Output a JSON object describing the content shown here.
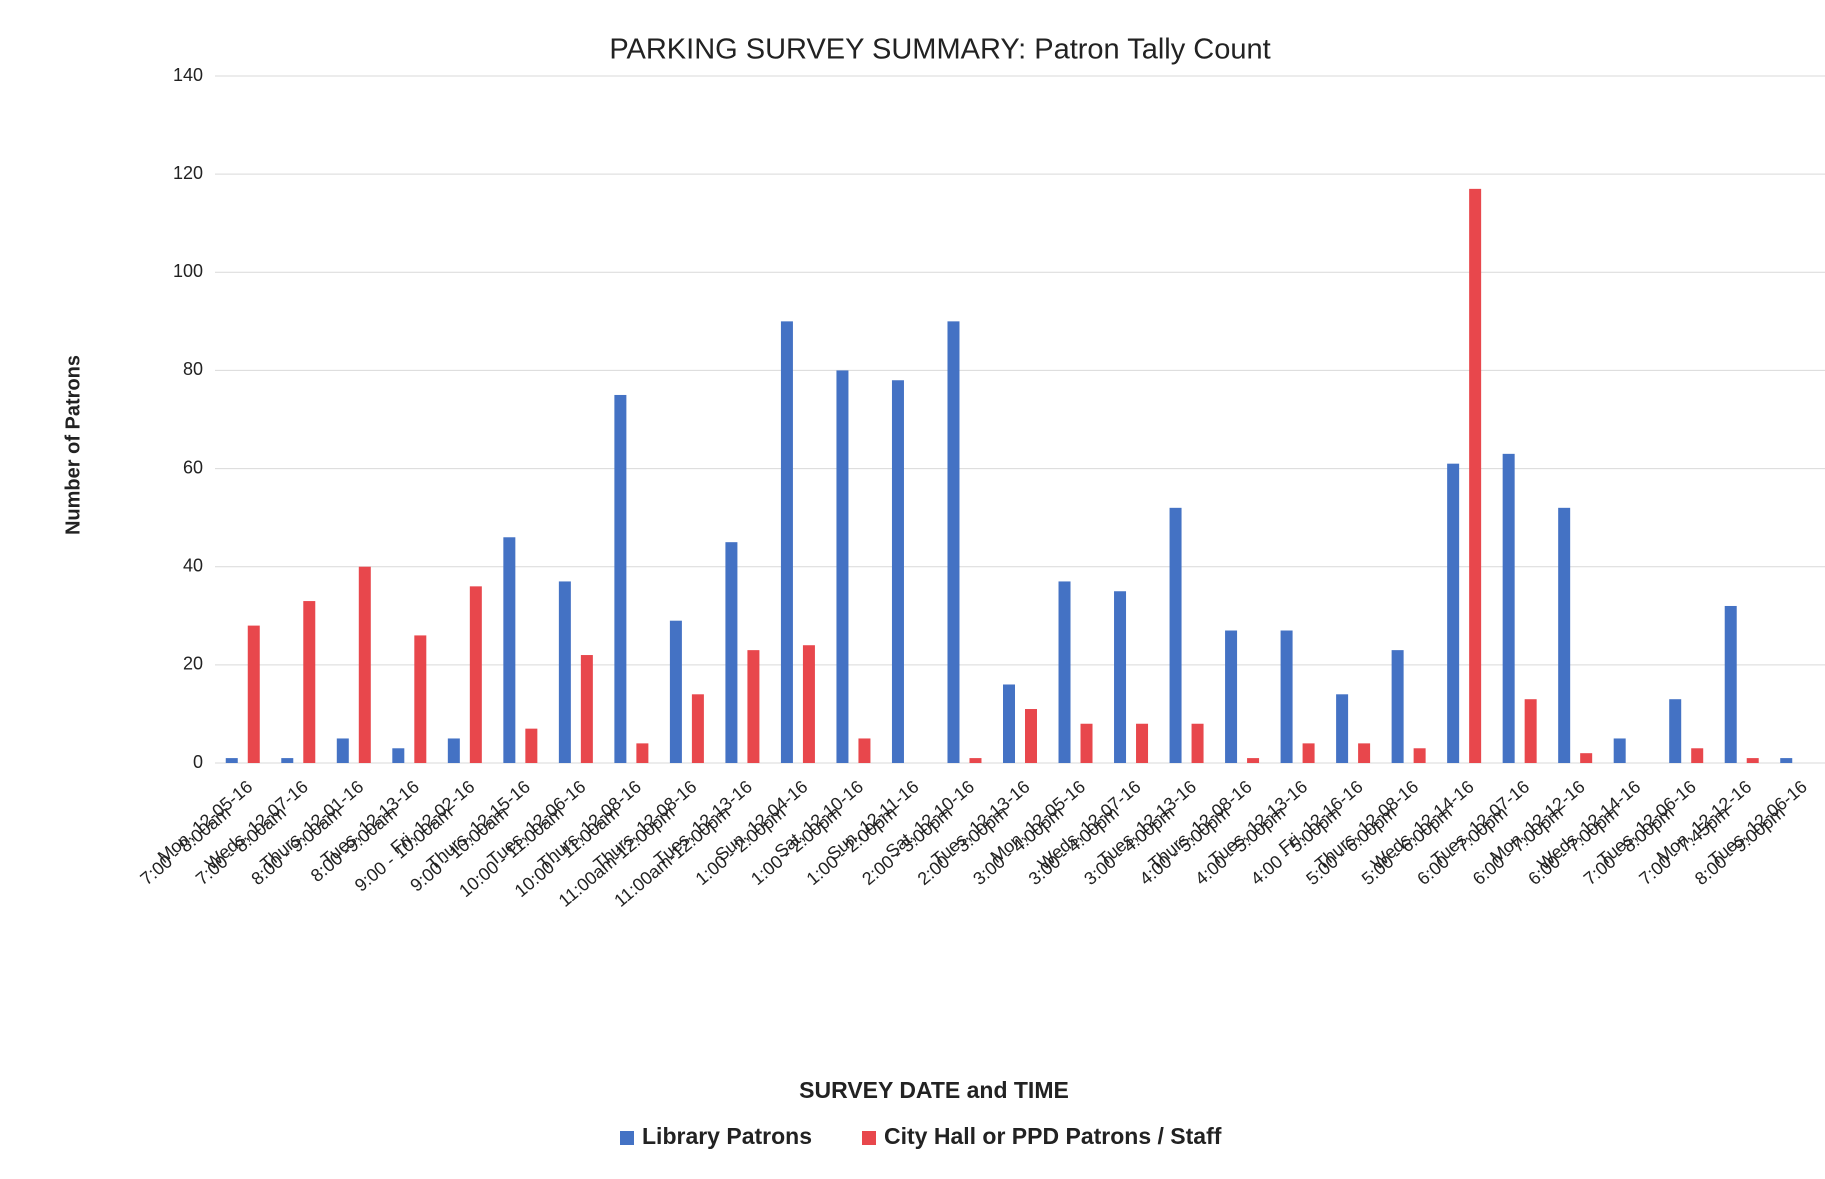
{
  "chart_data": {
    "type": "bar",
    "title": "PARKING SURVEY SUMMARY:  Patron Tally Count",
    "x_label": "SURVEY DATE and TIME",
    "y_label": "Number of Patrons",
    "categories": [
      [
        "Mon, 12-05-16",
        "7:00 - 8:00am"
      ],
      [
        "Weds, 12-07-16",
        "7:00 - 8:00am"
      ],
      [
        "Thurs, 12-01-16",
        "8:00 - 9:00am"
      ],
      [
        "Tues, 12-13-16",
        "8:00 -9:00am"
      ],
      [
        "Fri, 12-02-16",
        "9:00 - 10:00am"
      ],
      [
        "Thurs, 12-15-16",
        "9:00 - 10:00am"
      ],
      [
        "Tues, 12-06-16",
        "10:00 - 11:00am"
      ],
      [
        "Thurs, 12-08-16",
        "10:00 - 11:00am"
      ],
      [
        "Thurs, 12-08-16",
        "11:00am-12:00pm"
      ],
      [
        "Tues, 12-13-16",
        "11:00am-12:00pm"
      ],
      [
        "Sun, 12-04-16",
        "1:00 - 2:00pm"
      ],
      [
        "Sat, 12-10-16",
        "1:00 - 2:00pm"
      ],
      [
        "Sun, 12-11-16",
        "1:00 - 2:00pm"
      ],
      [
        "Sat, 12-10-16",
        "2:00 - 3:00pm"
      ],
      [
        "Tues, 12-13-16",
        "2:00 - 3:00pm"
      ],
      [
        "Mon, 12-05-16",
        "3:00 - 4:00pm"
      ],
      [
        "Weds, 12-07-16",
        "3:00 - 4:00pm"
      ],
      [
        "Tues, 12-13-16",
        "3:00 - 4:00pm"
      ],
      [
        "Thurs, 12-08-16",
        "4:00 - 5:00pm"
      ],
      [
        "Tues, 12-13-16",
        "4:00 - 5:00pm"
      ],
      [
        "Fri, 12-16-16",
        "4:00 - 5:00pm"
      ],
      [
        "Thurs, 12-08-16",
        "5:00 - 6:00pm"
      ],
      [
        "Weds, 12-14-16",
        "5:00 - 6:00pm"
      ],
      [
        "Tues, 12-07-16",
        "6:00 - 7:00pm"
      ],
      [
        "Mon, 12-12-16",
        "6:00 - 7:00pm"
      ],
      [
        "Weds, 12-14-16",
        "6:00 - 7:00pm"
      ],
      [
        "Tues, 12-06-16",
        "7:00 - 8:00pm"
      ],
      [
        "Mon, 12-12-16",
        "7:00 - 7:45pm"
      ],
      [
        "Tues, 12-06-16",
        "8:00 - 9:00pm"
      ]
    ],
    "series": [
      {
        "name": "Library Patrons",
        "color": "#4472c4",
        "values": [
          1,
          1,
          5,
          3,
          5,
          46,
          37,
          75,
          29,
          45,
          90,
          80,
          78,
          90,
          16,
          37,
          35,
          52,
          27,
          27,
          14,
          23,
          61,
          63,
          52,
          5,
          13,
          32,
          1
        ]
      },
      {
        "name": "City Hall or PPD Patrons / Staff",
        "color": "#e8474c",
        "values": [
          28,
          33,
          40,
          26,
          36,
          7,
          22,
          4,
          14,
          23,
          24,
          5,
          0,
          1,
          11,
          8,
          8,
          8,
          1,
          4,
          4,
          3,
          117,
          13,
          2,
          0,
          3,
          1,
          0
        ]
      }
    ],
    "ylim": [
      0,
      140
    ],
    "yticks": [
      0,
      20,
      40,
      60,
      80,
      100,
      120,
      140
    ],
    "grid": true,
    "legend": "bottom"
  }
}
